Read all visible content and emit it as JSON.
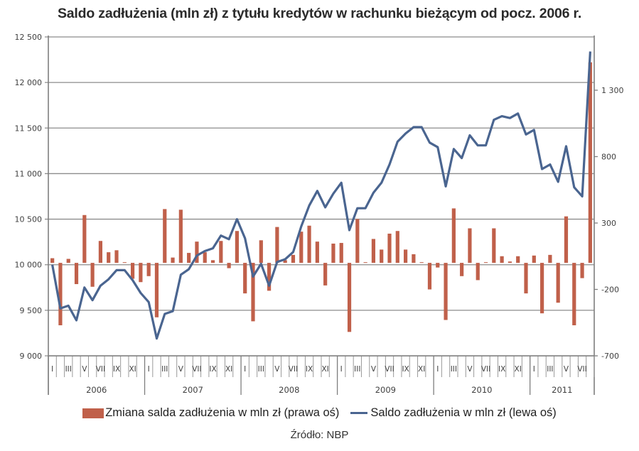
{
  "title": "Saldo zadłużenia (mln zł) z tytułu kredytów w rachunku bieżącym od pocz. 2006 r.",
  "legend": {
    "bar_label": "Zmiana salda zadłużenia w mln zł (prawa oś)",
    "line_label": "Saldo zadłużenia w mln zł (lewa oś)"
  },
  "source": "Źródło: NBP",
  "colors": {
    "bar": "#c0604a",
    "line": "#4a6590",
    "grid": "#8c8c8c",
    "axis": "#7f7f7f"
  },
  "axes": {
    "left_ticks": [
      "12 500",
      "12 000",
      "11 500",
      "11 000",
      "10 500",
      "10 000",
      "9 500",
      "9 000"
    ],
    "right_ticks": [
      "1 300",
      "800",
      "300",
      "-200",
      "-700"
    ],
    "month_labels": [
      "I",
      "",
      "III",
      "",
      "V",
      "",
      "VII",
      "",
      "IX",
      "",
      "XI",
      ""
    ],
    "years": [
      "2006",
      "2007",
      "2008",
      "2009",
      "2010",
      "2011"
    ]
  },
  "chart_data": {
    "type": "bar+line (dual axis)",
    "title": "Saldo zadłużenia (mln zł) z tytułu kredytów w rachunku bieżącym od pocz. 2006 r.",
    "xlabel": "",
    "ylabel_left": "Saldo zadłużenia w mln zł",
    "ylabel_right": "Zmiana salda zadłużenia w mln zł",
    "ylim_left": [
      9000,
      12500
    ],
    "ylim_right": [
      -700,
      1800
    ],
    "left_ticks": [
      9000,
      9500,
      10000,
      10500,
      11000,
      11500,
      12000,
      12500
    ],
    "right_ticks": [
      -700,
      -200,
      300,
      800,
      1300
    ],
    "grid": true,
    "legend_position": "bottom",
    "x_start": "2006-01",
    "x_end": "2011-08",
    "categories": [
      "2006-I",
      "2006-II",
      "2006-III",
      "2006-IV",
      "2006-V",
      "2006-VI",
      "2006-VII",
      "2006-VIII",
      "2006-IX",
      "2006-X",
      "2006-XI",
      "2006-XII",
      "2007-I",
      "2007-II",
      "2007-III",
      "2007-IV",
      "2007-V",
      "2007-VI",
      "2007-VII",
      "2007-VIII",
      "2007-IX",
      "2007-X",
      "2007-XI",
      "2007-XII",
      "2008-I",
      "2008-II",
      "2008-III",
      "2008-IV",
      "2008-V",
      "2008-VI",
      "2008-VII",
      "2008-VIII",
      "2008-IX",
      "2008-X",
      "2008-XI",
      "2008-XII",
      "2009-I",
      "2009-II",
      "2009-III",
      "2009-IV",
      "2009-V",
      "2009-VI",
      "2009-VII",
      "2009-VIII",
      "2009-IX",
      "2009-X",
      "2009-XI",
      "2009-XII",
      "2010-I",
      "2010-II",
      "2010-III",
      "2010-IV",
      "2010-V",
      "2010-VI",
      "2010-VII",
      "2010-VIII",
      "2010-IX",
      "2010-X",
      "2010-XI",
      "2010-XII",
      "2011-I",
      "2011-II",
      "2011-III",
      "2011-IV",
      "2011-V",
      "2011-VI",
      "2011-VII",
      "2011-VIII"
    ],
    "series": [
      {
        "name": "Zmiana salda zadłużenia w mln zł (prawa oś)",
        "type": "bar",
        "axis": "right",
        "values": [
          35,
          -470,
          30,
          -160,
          360,
          -180,
          165,
          80,
          95,
          5,
          -120,
          -145,
          -100,
          -410,
          405,
          40,
          400,
          75,
          160,
          80,
          20,
          165,
          -40,
          240,
          -230,
          -440,
          170,
          -210,
          270,
          20,
          60,
          235,
          280,
          160,
          -170,
          145,
          150,
          -520,
          330,
          5,
          180,
          100,
          220,
          240,
          100,
          65,
          5,
          -200,
          -35,
          -430,
          410,
          -100,
          260,
          -130,
          5,
          260,
          50,
          10,
          50,
          -230,
          55,
          -380,
          60,
          -300,
          350,
          -470,
          -115,
          1510
        ]
      },
      {
        "name": "Saldo zadłużenia w mln zł (lewa oś)",
        "type": "line",
        "axis": "left",
        "values": [
          10000,
          9520,
          9550,
          9390,
          9750,
          9610,
          9770,
          9840,
          9940,
          9940,
          9830,
          9690,
          9590,
          9190,
          9460,
          9490,
          9890,
          9950,
          10100,
          10150,
          10180,
          10320,
          10280,
          10500,
          10290,
          9870,
          10010,
          9770,
          10030,
          10060,
          10140,
          10420,
          10650,
          10810,
          10630,
          10780,
          10900,
          10380,
          10620,
          10620,
          10790,
          10900,
          11100,
          11350,
          11440,
          11510,
          11510,
          11340,
          11290,
          10860,
          11270,
          11170,
          11420,
          11310,
          11310,
          11590,
          11630,
          11610,
          11660,
          11430,
          11480,
          11050,
          11100,
          10910,
          11300,
          10850,
          10750,
          12340
        ]
      }
    ]
  }
}
